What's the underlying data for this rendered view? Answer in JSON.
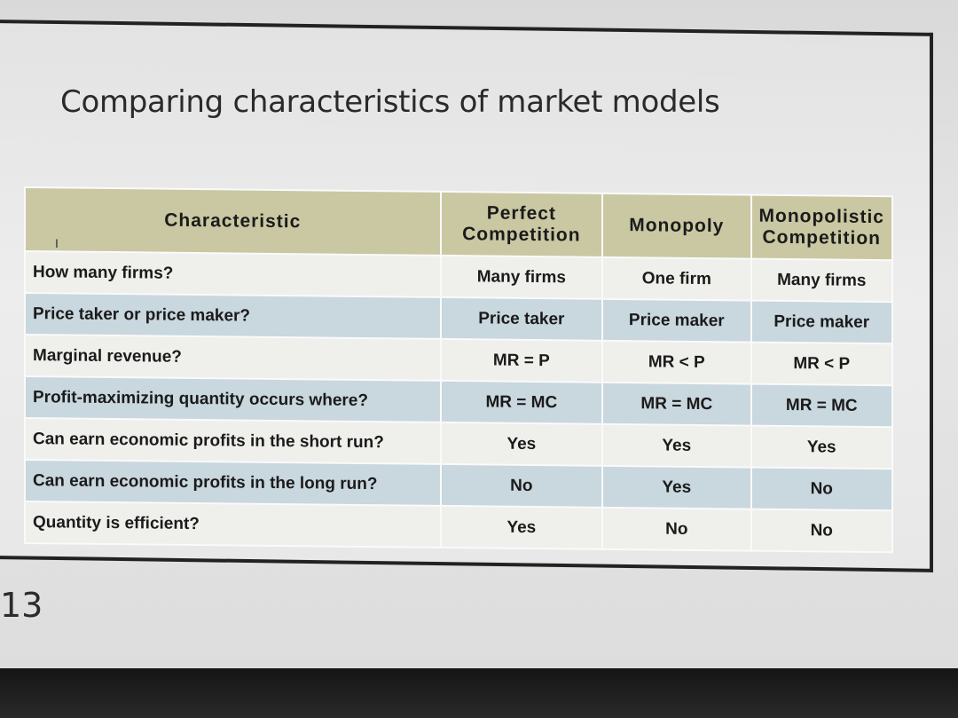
{
  "slide": {
    "title": "Comparing characteristics of market models",
    "page_number": "13"
  },
  "table": {
    "headers": [
      "Characteristic",
      "Perfect Competition",
      "Monopoly",
      "Monopolistic Competition"
    ],
    "rows": [
      {
        "question": "How many firms?",
        "perfect": "Many firms",
        "monopoly": "One firm",
        "monopolistic": "Many firms"
      },
      {
        "question": "Price taker or price maker?",
        "perfect": "Price taker",
        "monopoly": "Price maker",
        "monopolistic": "Price maker"
      },
      {
        "question": "Marginal revenue?",
        "perfect": "MR = P",
        "monopoly": "MR < P",
        "monopolistic": "MR < P"
      },
      {
        "question": "Profit-maximizing quantity occurs where?",
        "perfect": "MR = MC",
        "monopoly": "MR = MC",
        "monopolistic": "MR = MC"
      },
      {
        "question": "Can earn economic profits in the short run?",
        "perfect": "Yes",
        "monopoly": "Yes",
        "monopolistic": "Yes"
      },
      {
        "question": "Can earn economic profits in the long run?",
        "perfect": "No",
        "monopoly": "Yes",
        "monopolistic": "No"
      },
      {
        "question": "Quantity is efficient?",
        "perfect": "Yes",
        "monopoly": "No",
        "monopolistic": "No"
      }
    ]
  },
  "colors": {
    "header_bg": "#c9c8a2",
    "row_light": "#efefec",
    "row_blue": "#c9d7de"
  },
  "icons": {
    "cursor": "text-cursor-icon"
  }
}
